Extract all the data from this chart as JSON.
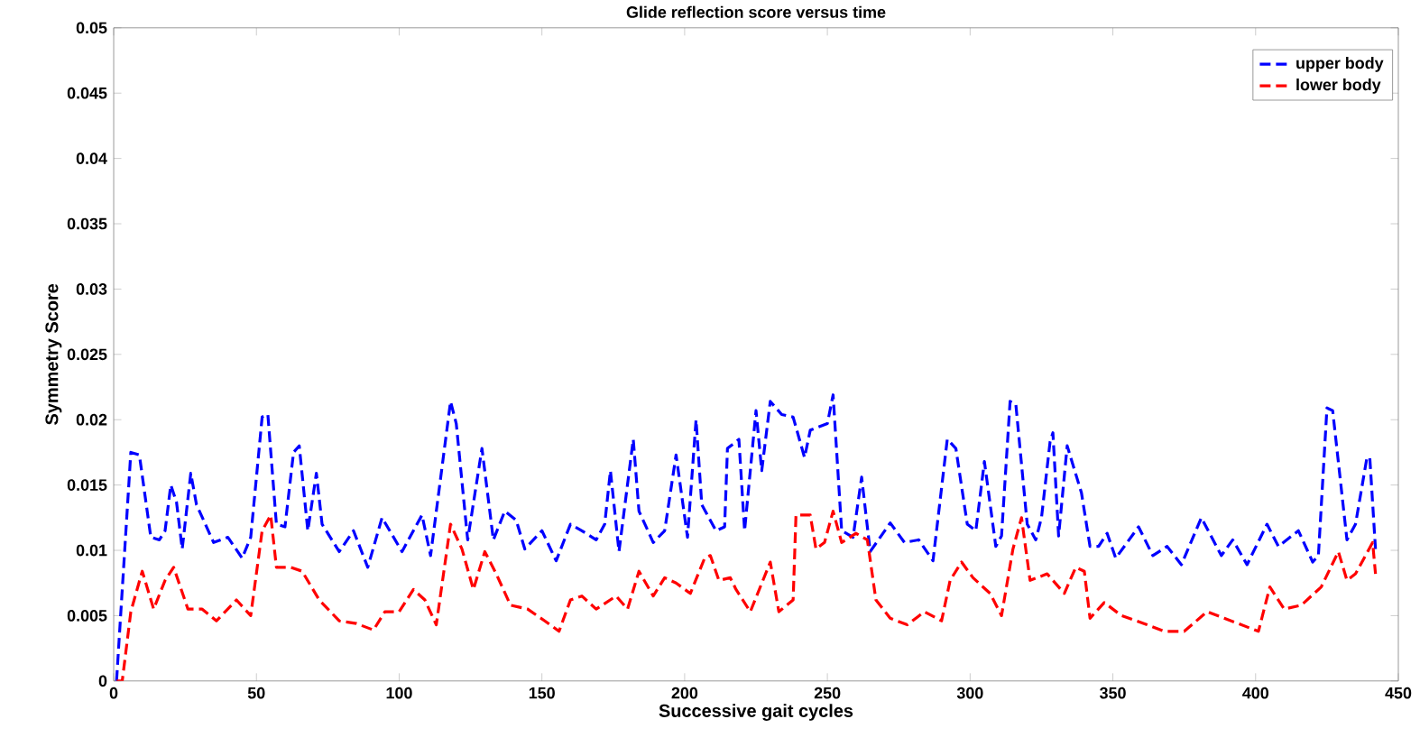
{
  "chart_data": {
    "type": "line",
    "title": "Glide reflection score versus time",
    "xlabel": "Successive gait cycles",
    "ylabel": "Symmetry Score",
    "xlim": [
      0,
      450
    ],
    "ylim": [
      0,
      0.05
    ],
    "xticks": [
      0,
      50,
      100,
      150,
      200,
      250,
      300,
      350,
      400,
      450
    ],
    "yticks": [
      0,
      0.005,
      0.01,
      0.015,
      0.02,
      0.025,
      0.03,
      0.035,
      0.04,
      0.045,
      0.05
    ],
    "grid": false,
    "legend": "top right",
    "marker": "none",
    "series": [
      {
        "name": "upper body",
        "color": "#0000ff",
        "line_style": "dashed",
        "x": [
          1,
          6,
          9,
          13,
          16,
          18,
          20,
          22,
          24,
          27,
          29,
          35,
          40,
          45,
          48,
          52,
          54,
          57,
          60,
          63,
          65,
          68,
          71,
          73,
          79,
          84,
          89,
          94,
          101,
          108,
          111,
          118,
          120,
          124,
          129,
          133,
          137,
          141,
          144,
          150,
          155,
          160,
          164,
          169,
          172,
          174,
          177,
          182,
          184,
          189,
          193,
          197,
          201,
          204,
          206,
          211,
          214,
          215,
          219,
          221,
          225,
          227,
          230,
          234,
          238,
          242,
          244,
          250,
          252,
          255,
          259,
          262,
          265,
          272,
          277,
          282,
          287,
          292,
          295,
          299,
          302,
          305,
          309,
          311,
          314,
          316,
          320,
          323,
          325,
          328,
          329,
          331,
          334,
          339,
          342,
          345,
          348,
          351,
          355,
          359,
          364,
          369,
          374,
          381,
          388,
          392,
          397,
          404,
          408,
          415,
          420,
          422,
          425,
          427,
          432,
          435,
          439,
          440,
          442
        ],
        "values": [
          0,
          0.0175,
          0.0173,
          0.011,
          0.0108,
          0.0115,
          0.015,
          0.0137,
          0.0101,
          0.0159,
          0.0135,
          0.0106,
          0.011,
          0.0094,
          0.011,
          0.0202,
          0.0204,
          0.012,
          0.0118,
          0.0175,
          0.018,
          0.0115,
          0.0159,
          0.012,
          0.0099,
          0.0115,
          0.0087,
          0.0125,
          0.0099,
          0.0127,
          0.0096,
          0.0214,
          0.0197,
          0.0108,
          0.0178,
          0.0108,
          0.013,
          0.0123,
          0.0101,
          0.0115,
          0.0092,
          0.012,
          0.0115,
          0.0108,
          0.012,
          0.0161,
          0.0099,
          0.0185,
          0.013,
          0.0106,
          0.0115,
          0.0173,
          0.011,
          0.02,
          0.0135,
          0.0115,
          0.0118,
          0.0178,
          0.0185,
          0.0115,
          0.0207,
          0.0161,
          0.0214,
          0.0204,
          0.0202,
          0.0171,
          0.0192,
          0.0197,
          0.0219,
          0.0115,
          0.011,
          0.0156,
          0.0099,
          0.0121,
          0.0106,
          0.0108,
          0.0092,
          0.0185,
          0.0178,
          0.012,
          0.0115,
          0.0168,
          0.0103,
          0.0111,
          0.0214,
          0.0212,
          0.012,
          0.0108,
          0.0125,
          0.0183,
          0.019,
          0.0111,
          0.018,
          0.0144,
          0.0103,
          0.0103,
          0.0113,
          0.0094,
          0.0106,
          0.0118,
          0.0096,
          0.0103,
          0.0089,
          0.0125,
          0.0096,
          0.0108,
          0.0089,
          0.012,
          0.0103,
          0.0115,
          0.0091,
          0.0096,
          0.0209,
          0.0207,
          0.0108,
          0.012,
          0.0171,
          0.0171,
          0.0101
        ]
      },
      {
        "name": "lower body",
        "color": "#ff0000",
        "line_style": "dashed",
        "x": [
          1,
          3,
          6,
          10,
          14,
          18,
          21,
          26,
          31,
          36,
          43,
          48,
          52,
          55,
          57,
          62,
          66,
          72,
          79,
          85,
          91,
          95,
          100,
          105,
          109,
          113,
          118,
          122,
          126,
          130,
          134,
          139,
          145,
          151,
          156,
          160,
          164,
          169,
          176,
          180,
          184,
          189,
          193,
          197,
          202,
          207,
          209,
          212,
          216,
          218,
          223,
          230,
          233,
          238,
          239,
          244,
          246,
          249,
          252,
          255,
          260,
          264,
          267,
          272,
          278,
          284,
          290,
          293,
          297,
          301,
          307,
          311,
          315,
          318,
          321,
          327,
          333,
          337,
          340,
          342,
          347,
          353,
          362,
          368,
          375,
          383,
          389,
          401,
          405,
          410,
          416,
          423,
          429,
          432,
          435,
          441,
          442
        ],
        "values": [
          0,
          0,
          0.0053,
          0.0084,
          0.0055,
          0.0077,
          0.0087,
          0.0055,
          0.0055,
          0.0046,
          0.0062,
          0.005,
          0.0115,
          0.0127,
          0.0087,
          0.0087,
          0.0084,
          0.0062,
          0.0046,
          0.0044,
          0.0039,
          0.0053,
          0.0053,
          0.007,
          0.0062,
          0.0043,
          0.012,
          0.0101,
          0.007,
          0.0099,
          0.0082,
          0.0058,
          0.0055,
          0.0046,
          0.0038,
          0.0062,
          0.0065,
          0.0055,
          0.0065,
          0.0055,
          0.0084,
          0.0065,
          0.0079,
          0.0075,
          0.0067,
          0.0094,
          0.0096,
          0.0077,
          0.0079,
          0.007,
          0.0053,
          0.0091,
          0.0053,
          0.0062,
          0.0127,
          0.0127,
          0.0101,
          0.0106,
          0.013,
          0.0106,
          0.0113,
          0.0108,
          0.0062,
          0.0048,
          0.0043,
          0.0053,
          0.0046,
          0.0077,
          0.0091,
          0.0079,
          0.0067,
          0.005,
          0.0101,
          0.0125,
          0.0077,
          0.0082,
          0.0067,
          0.0087,
          0.0084,
          0.0048,
          0.006,
          0.005,
          0.0043,
          0.0038,
          0.0038,
          0.0053,
          0.0048,
          0.0038,
          0.0072,
          0.0055,
          0.0058,
          0.0072,
          0.0099,
          0.0077,
          0.0082,
          0.0106,
          0.0082
        ]
      }
    ]
  }
}
